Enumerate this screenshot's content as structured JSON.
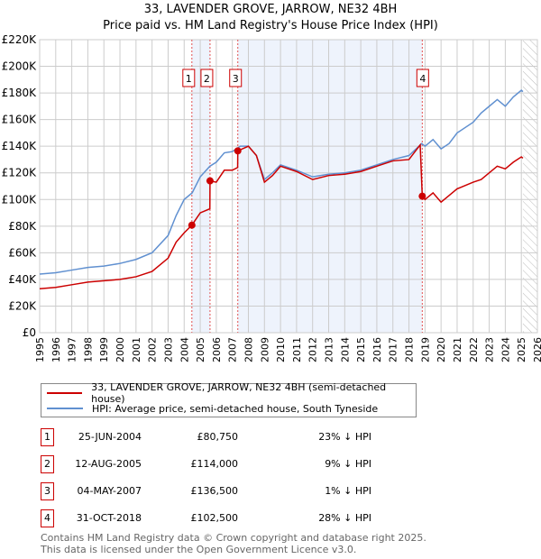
{
  "title": "33, LAVENDER GROVE, JARROW, NE32 4BH",
  "subtitle": "Price paid vs. HM Land Registry's House Price Index (HPI)",
  "colors": {
    "property": "#cc0000",
    "hpi": "#6090d0",
    "shade": "#eef3fc"
  },
  "chart_data": {
    "type": "line",
    "title": "33, LAVENDER GROVE, JARROW, NE32 4BH",
    "ylim": [
      0,
      220000
    ],
    "xlim": [
      1995,
      2026
    ],
    "y_ticks": [
      "£0",
      "£20K",
      "£40K",
      "£60K",
      "£80K",
      "£100K",
      "£120K",
      "£140K",
      "£160K",
      "£180K",
      "£200K",
      "£220K"
    ],
    "x_ticks": [
      "1995",
      "1996",
      "1997",
      "1998",
      "1999",
      "2000",
      "2001",
      "2002",
      "2003",
      "2004",
      "2005",
      "2006",
      "2007",
      "2008",
      "2009",
      "2010",
      "2011",
      "2012",
      "2013",
      "2014",
      "2015",
      "2016",
      "2017",
      "2018",
      "2019",
      "2020",
      "2021",
      "2022",
      "2023",
      "2024",
      "2025",
      "2026"
    ],
    "grid": true,
    "series": [
      {
        "name": "33, LAVENDER GROVE, JARROW, NE32 4BH (semi-detached house)",
        "color": "#cc0000",
        "x": [
          1995,
          1996,
          1997,
          1998,
          1999,
          2000,
          2001,
          2002,
          2003,
          2003.5,
          2004,
          2004.48,
          2005,
          2005.6,
          2005.61,
          2006,
          2006.5,
          2007,
          2007.33,
          2007.34,
          2008,
          2008.5,
          2009,
          2009.5,
          2010,
          2011,
          2012,
          2013,
          2014,
          2015,
          2016,
          2017,
          2018,
          2018.7,
          2018.83,
          2019,
          2019.5,
          2020,
          2020.5,
          2021,
          2022,
          2022.5,
          2023,
          2023.5,
          2024,
          2024.5,
          2025,
          2025.1
        ],
        "y": [
          33000,
          34000,
          36000,
          38000,
          39000,
          40000,
          42000,
          46000,
          56000,
          68000,
          75000,
          80750,
          90000,
          93000,
          114000,
          113000,
          122000,
          122000,
          124000,
          136500,
          140000,
          133000,
          113000,
          118000,
          125000,
          121000,
          115000,
          118000,
          119000,
          121000,
          125000,
          129000,
          130000,
          141000,
          102500,
          100000,
          105000,
          98000,
          103000,
          108000,
          113000,
          115000,
          120000,
          125000,
          123000,
          128000,
          132000,
          131000
        ]
      },
      {
        "name": "HPI: Average price, semi-detached house, South Tyneside",
        "color": "#6090d0",
        "x": [
          1995,
          1996,
          1997,
          1998,
          1999,
          2000,
          2001,
          2002,
          2003,
          2003.5,
          2004,
          2004.5,
          2005,
          2005.6,
          2006,
          2006.5,
          2007,
          2007.5,
          2008,
          2008.5,
          2009,
          2009.5,
          2010,
          2011,
          2012,
          2013,
          2014,
          2015,
          2016,
          2017,
          2018,
          2018.8,
          2019,
          2019.5,
          2020,
          2020.5,
          2021,
          2022,
          2022.5,
          2023,
          2023.5,
          2024,
          2024.5,
          2025,
          2025.1
        ],
        "y": [
          44000,
          45000,
          47000,
          49000,
          50000,
          52000,
          55000,
          60000,
          73000,
          88000,
          100000,
          105000,
          117000,
          125000,
          128000,
          135000,
          136000,
          140000,
          140000,
          133000,
          115000,
          120000,
          126000,
          122000,
          117000,
          119000,
          120000,
          122000,
          126000,
          130000,
          133000,
          142000,
          140000,
          145000,
          138000,
          142000,
          150000,
          158000,
          165000,
          170000,
          175000,
          170000,
          177000,
          182000,
          181000
        ]
      }
    ],
    "annotations": [
      {
        "label": "1",
        "x": 2004.48,
        "y": 80750
      },
      {
        "label": "2",
        "x": 2005.61,
        "y": 114000
      },
      {
        "label": "3",
        "x": 2007.34,
        "y": 136500
      },
      {
        "label": "4",
        "x": 2018.83,
        "y": 102500
      }
    ],
    "shaded_ranges": [
      [
        2004.48,
        2005.61
      ],
      [
        2007.34,
        2018.83
      ]
    ],
    "hatched_from": 2025.1,
    "legend_position": "bottom"
  },
  "legend": {
    "property": "33, LAVENDER GROVE, JARROW, NE32 4BH (semi-detached house)",
    "hpi": "HPI: Average price, semi-detached house, South Tyneside"
  },
  "sales": [
    {
      "num": "1",
      "date": "25-JUN-2004",
      "price": "£80,750",
      "hpi": "23% ↓ HPI"
    },
    {
      "num": "2",
      "date": "12-AUG-2005",
      "price": "£114,000",
      "hpi": "9% ↓ HPI"
    },
    {
      "num": "3",
      "date": "04-MAY-2007",
      "price": "£136,500",
      "hpi": "1% ↓ HPI"
    },
    {
      "num": "4",
      "date": "31-OCT-2018",
      "price": "£102,500",
      "hpi": "28% ↓ HPI"
    }
  ],
  "footer": {
    "line1": "Contains HM Land Registry data © Crown copyright and database right 2025.",
    "line2": "This data is licensed under the Open Government Licence v3.0."
  }
}
